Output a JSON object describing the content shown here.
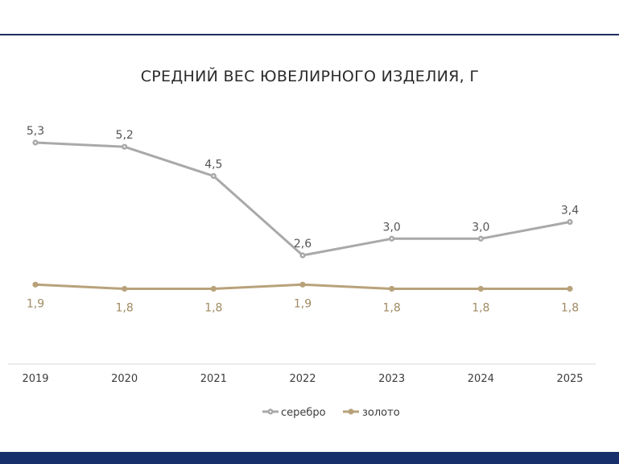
{
  "chart_data": {
    "type": "line",
    "title": "СРЕДНИЙ ВЕС ЮВЕЛИРНОГО ИЗДЕЛИЯ, Г",
    "xlabel": "",
    "ylabel": "",
    "categories": [
      "2019",
      "2020",
      "2021",
      "2022",
      "2023",
      "2024",
      "2025"
    ],
    "series": [
      {
        "name": "серебро",
        "values": [
          5.3,
          5.2,
          4.5,
          2.6,
          3.0,
          3.0,
          3.4
        ],
        "labels": [
          "5,3",
          "5,2",
          "4,5",
          "2,6",
          "3,0",
          "3,0",
          "3,4"
        ],
        "color": "#a9a9a9",
        "label_position": "above"
      },
      {
        "name": "золото",
        "values": [
          1.9,
          1.8,
          1.8,
          1.9,
          1.8,
          1.8,
          1.8
        ],
        "labels": [
          "1,9",
          "1,8",
          "1,8",
          "1,9",
          "1,8",
          "1,8",
          "1,8"
        ],
        "color": "#b8a27a",
        "label_position": "below"
      }
    ],
    "grid": false,
    "legend_placement": "bottom-center"
  }
}
